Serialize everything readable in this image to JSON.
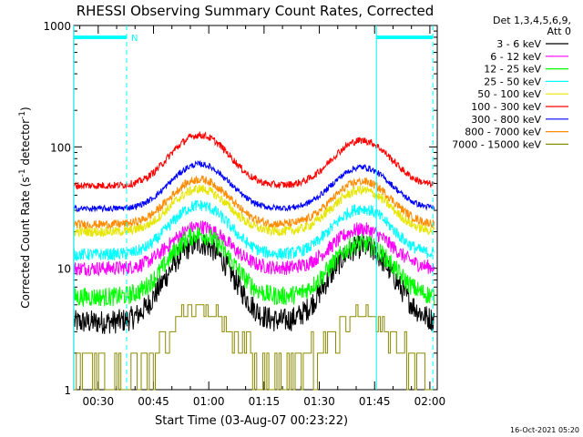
{
  "chart_data": {
    "type": "line",
    "title": "RHESSI Observing Summary Count Rates, Corrected",
    "xlabel": "Start Time (03-Aug-07 00:23:22)",
    "ylabel_parts": {
      "pre": "Corrected Count Rate (s",
      "sup1": "-1",
      "mid": " detector",
      "sup2": "-1",
      "post": ")"
    },
    "y_scale": "log",
    "ylim": [
      1,
      1000
    ],
    "y_ticks": [
      {
        "value": 1,
        "label": "1"
      },
      {
        "value": 10,
        "label": "10"
      },
      {
        "value": 100,
        "label": "100"
      },
      {
        "value": 1000,
        "label": "1000"
      }
    ],
    "xlim_minutes": [
      23.37,
      122
    ],
    "x_ticks": [
      {
        "minute": 30,
        "label": "00:30"
      },
      {
        "minute": 45,
        "label": "00:45"
      },
      {
        "minute": 60,
        "label": "01:00"
      },
      {
        "minute": 75,
        "label": "01:15"
      },
      {
        "minute": 90,
        "label": "01:30"
      },
      {
        "minute": 105,
        "label": "01:45"
      },
      {
        "minute": 120,
        "label": "02:00"
      }
    ],
    "legend": {
      "placement": "right",
      "header": [
        "Det 1,3,4,5,6,9,",
        "Att 0"
      ]
    },
    "series": [
      {
        "name": "3 - 6 keV",
        "color": "#000000",
        "base": 3.6,
        "peak1": 16,
        "peak2": 15,
        "noise": 0.1,
        "stair": false
      },
      {
        "name": "6 - 12 keV",
        "color": "#ff00ff",
        "base": 10,
        "peak1": 22,
        "peak2": 21,
        "noise": 0.06,
        "stair": false
      },
      {
        "name": "12 - 25 keV",
        "color": "#00ff00",
        "base": 5.8,
        "peak1": 19,
        "peak2": 16,
        "noise": 0.08,
        "stair": false
      },
      {
        "name": "25 - 50 keV",
        "color": "#00ffff",
        "base": 13,
        "peak1": 33,
        "peak2": 31,
        "noise": 0.05,
        "stair": false
      },
      {
        "name": "50 - 100 keV",
        "color": "#e6e600",
        "base": 20,
        "peak1": 45,
        "peak2": 44,
        "noise": 0.04,
        "stair": false
      },
      {
        "name": "100 - 300 keV",
        "color": "#ff0000",
        "base": 48,
        "peak1": 125,
        "peak2": 113,
        "noise": 0.03,
        "stair": false
      },
      {
        "name": "300 - 800 keV",
        "color": "#0000ff",
        "base": 31,
        "peak1": 72,
        "peak2": 68,
        "noise": 0.025,
        "stair": false
      },
      {
        "name": "800 - 7000 keV",
        "color": "#ff8c00",
        "base": 23,
        "peak1": 54,
        "peak2": 52,
        "noise": 0.035,
        "stair": false
      },
      {
        "name": "7000 - 15000 keV",
        "color": "#8b8b00",
        "base": 1.5,
        "peak1": 4.8,
        "peak2": 3.9,
        "noise": 0.0,
        "stair": true
      }
    ],
    "peak_centers_minutes": [
      57.5,
      101.5
    ],
    "peak_width_minutes": 9.5,
    "data_start_minute": 23.5,
    "data_end_minute": 121.2,
    "markers": {
      "saa_bars": [
        {
          "from": 23.4,
          "to": 37.7
        },
        {
          "from": 105.5,
          "to": 120.8
        }
      ],
      "saa_label": "N",
      "dashed_lines_minutes": [
        37.7,
        120.8
      ],
      "solid_lines_minutes": [
        23.4,
        105.5
      ],
      "color": "#00ffff"
    },
    "footer_date": "16-Oct-2021 05:20"
  }
}
